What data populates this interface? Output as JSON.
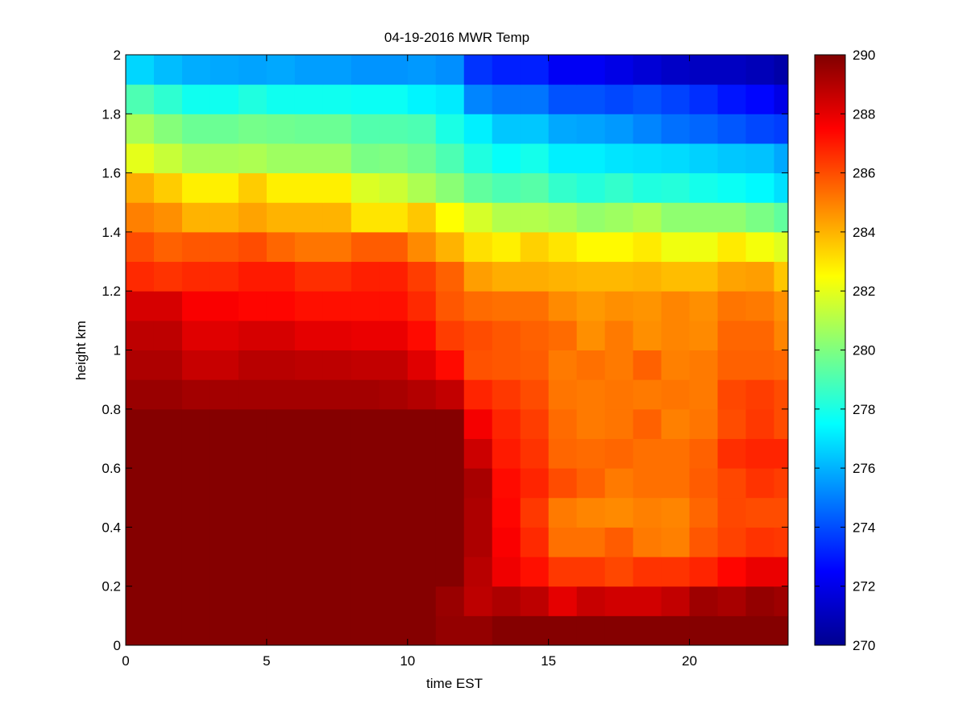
{
  "chart_data": {
    "type": "heatmap",
    "title": "04-19-2016 MWR Temp",
    "xlabel": "time EST",
    "ylabel": "height km",
    "xlim": [
      0,
      23.5
    ],
    "ylim": [
      0,
      2
    ],
    "xticks": [
      0,
      5,
      10,
      15,
      20
    ],
    "yticks": [
      0,
      0.2,
      0.4,
      0.6,
      0.8,
      1,
      1.2,
      1.4,
      1.6,
      1.8,
      2
    ],
    "colormap": "jet",
    "colorbar": {
      "clim": [
        270,
        290
      ],
      "ticks": [
        270,
        272,
        274,
        276,
        278,
        280,
        282,
        284,
        286,
        288,
        290
      ]
    },
    "x": [
      0.5,
      1.5,
      2.5,
      3.5,
      4.5,
      5.5,
      6.5,
      7.5,
      8.5,
      9.5,
      10.5,
      11.5,
      12.5,
      13.5,
      14.5,
      15.5,
      16.5,
      17.5,
      18.5,
      19.5,
      20.5,
      21.5,
      22.5,
      23.5
    ],
    "y": [
      0.05,
      0.15,
      0.25,
      0.35,
      0.45,
      0.55,
      0.65,
      0.75,
      0.85,
      0.95,
      1.05,
      1.15,
      1.25,
      1.35,
      1.45,
      1.55,
      1.65,
      1.75,
      1.85,
      1.95
    ],
    "z_units": "K",
    "z": [
      [
        289.9,
        289.9,
        289.9,
        289.9,
        289.9,
        289.9,
        289.9,
        289.9,
        289.9,
        289.9,
        289.9,
        289.6,
        289.6,
        289.9,
        289.9,
        289.9,
        289.9,
        289.9,
        289.9,
        289.9,
        289.9,
        289.9,
        289.9,
        289.9
      ],
      [
        289.9,
        289.9,
        289.9,
        289.9,
        289.9,
        289.9,
        289.9,
        289.9,
        289.9,
        289.9,
        289.9,
        289.5,
        288.8,
        289.1,
        288.8,
        288.0,
        288.6,
        288.4,
        288.4,
        288.7,
        289.4,
        289.2,
        289.6,
        289.4
      ],
      [
        289.9,
        289.9,
        289.9,
        289.9,
        289.9,
        289.9,
        289.9,
        289.9,
        289.9,
        289.9,
        289.9,
        289.9,
        288.9,
        287.8,
        287.2,
        286.4,
        286.4,
        286.1,
        286.5,
        286.5,
        286.8,
        287.4,
        287.9,
        287.9
      ],
      [
        289.9,
        289.9,
        289.9,
        289.9,
        289.9,
        289.9,
        289.9,
        289.9,
        289.9,
        289.9,
        289.9,
        289.9,
        289.1,
        287.6,
        286.7,
        285.3,
        285.3,
        285.7,
        285.1,
        285.0,
        285.8,
        286.2,
        286.5,
        286.4
      ],
      [
        289.9,
        289.9,
        289.9,
        289.9,
        289.9,
        289.9,
        289.9,
        289.9,
        289.9,
        289.9,
        289.9,
        289.9,
        289.1,
        287.4,
        286.4,
        285.1,
        284.9,
        284.8,
        285.0,
        284.9,
        285.5,
        286.1,
        286.0,
        286.0
      ],
      [
        289.9,
        289.9,
        289.9,
        289.9,
        289.9,
        289.9,
        289.9,
        289.9,
        289.9,
        289.9,
        289.9,
        289.9,
        289.2,
        287.3,
        286.8,
        286.0,
        285.6,
        285.1,
        285.3,
        285.3,
        285.7,
        286.1,
        286.5,
        286.3
      ],
      [
        289.9,
        289.9,
        289.9,
        289.9,
        289.9,
        289.9,
        289.9,
        289.9,
        289.9,
        289.9,
        289.9,
        289.9,
        288.5,
        287.0,
        286.5,
        285.5,
        285.4,
        285.5,
        285.3,
        285.3,
        285.6,
        286.6,
        286.8,
        286.8
      ],
      [
        289.9,
        289.9,
        289.9,
        289.9,
        289.9,
        289.9,
        289.9,
        289.9,
        289.9,
        289.9,
        289.9,
        289.9,
        287.7,
        286.8,
        286.3,
        285.4,
        285.1,
        285.2,
        285.6,
        285.0,
        285.2,
        286.0,
        286.4,
        286.0
      ],
      [
        289.5,
        289.5,
        289.3,
        289.3,
        289.3,
        289.3,
        289.3,
        289.3,
        289.3,
        289.2,
        289.0,
        288.7,
        286.8,
        286.4,
        286.0,
        285.2,
        285.1,
        285.2,
        285.1,
        285.2,
        285.1,
        286.1,
        286.3,
        286.0
      ],
      [
        289.1,
        289.1,
        288.6,
        288.6,
        288.9,
        288.9,
        288.8,
        288.8,
        288.7,
        288.7,
        288.1,
        287.3,
        285.9,
        285.8,
        285.7,
        285.1,
        285.3,
        285.1,
        285.6,
        285.0,
        285.1,
        285.6,
        285.6,
        285.5
      ],
      [
        288.8,
        288.8,
        288.1,
        288.1,
        288.3,
        288.3,
        288.0,
        288.0,
        287.9,
        287.9,
        287.3,
        286.3,
        286.0,
        285.8,
        285.6,
        285.4,
        284.7,
        285.1,
        284.7,
        284.9,
        284.8,
        285.5,
        285.5,
        284.9
      ],
      [
        288.3,
        288.3,
        287.6,
        287.6,
        287.4,
        287.4,
        287.2,
        287.2,
        287.2,
        287.2,
        286.7,
        285.8,
        285.4,
        285.3,
        285.3,
        284.8,
        284.5,
        284.7,
        284.6,
        284.9,
        284.7,
        285.2,
        285.1,
        284.7
      ],
      [
        286.7,
        286.5,
        286.7,
        286.7,
        287.0,
        287.0,
        286.6,
        286.6,
        286.9,
        286.9,
        286.3,
        285.6,
        284.4,
        284.1,
        284.1,
        284.0,
        283.9,
        283.9,
        284.0,
        283.8,
        283.8,
        284.3,
        284.4,
        283.6
      ],
      [
        286.0,
        285.6,
        285.8,
        285.8,
        286.0,
        285.5,
        285.2,
        285.2,
        285.7,
        285.7,
        284.8,
        284.0,
        283.1,
        282.8,
        283.4,
        283.0,
        282.6,
        282.6,
        282.9,
        282.2,
        282.2,
        282.9,
        282.3,
        281.9
      ],
      [
        285.0,
        284.7,
        284.0,
        284.0,
        284.3,
        284.0,
        284.0,
        284.0,
        283.0,
        283.0,
        283.6,
        282.5,
        281.7,
        281.0,
        281.0,
        280.8,
        280.4,
        280.6,
        280.9,
        280.3,
        280.3,
        280.3,
        279.9,
        279.4
      ],
      [
        284.1,
        283.5,
        282.8,
        282.8,
        283.5,
        282.8,
        282.8,
        282.8,
        281.8,
        281.5,
        280.9,
        280.2,
        279.4,
        279.0,
        279.2,
        278.5,
        278.2,
        278.5,
        278.1,
        278.2,
        277.9,
        277.7,
        277.4,
        276.9
      ],
      [
        282.0,
        281.4,
        280.8,
        280.8,
        280.9,
        280.6,
        280.6,
        280.6,
        279.9,
        280.0,
        279.7,
        279.0,
        278.1,
        277.6,
        277.9,
        277.2,
        277.2,
        277.0,
        276.9,
        276.8,
        276.6,
        276.4,
        276.3,
        275.8
      ],
      [
        280.8,
        280.1,
        279.6,
        279.6,
        279.8,
        279.7,
        279.6,
        279.6,
        279.1,
        279.1,
        279.0,
        278.0,
        277.2,
        276.4,
        276.4,
        275.8,
        275.7,
        275.5,
        275.1,
        274.7,
        274.5,
        274.2,
        273.9,
        273.7
      ],
      [
        279.0,
        278.4,
        277.8,
        277.8,
        278.1,
        277.8,
        277.8,
        277.8,
        277.7,
        277.7,
        277.3,
        277.1,
        275.1,
        274.8,
        274.8,
        274.1,
        274.1,
        273.9,
        274.1,
        273.8,
        273.4,
        272.9,
        272.6,
        272.0
      ],
      [
        276.7,
        276.2,
        275.9,
        275.8,
        275.7,
        275.8,
        275.6,
        275.6,
        275.4,
        275.4,
        275.5,
        275.3,
        273.5,
        273.1,
        273.1,
        272.3,
        272.3,
        272.0,
        271.7,
        271.4,
        271.3,
        271.3,
        271.1,
        270.8
      ]
    ]
  }
}
